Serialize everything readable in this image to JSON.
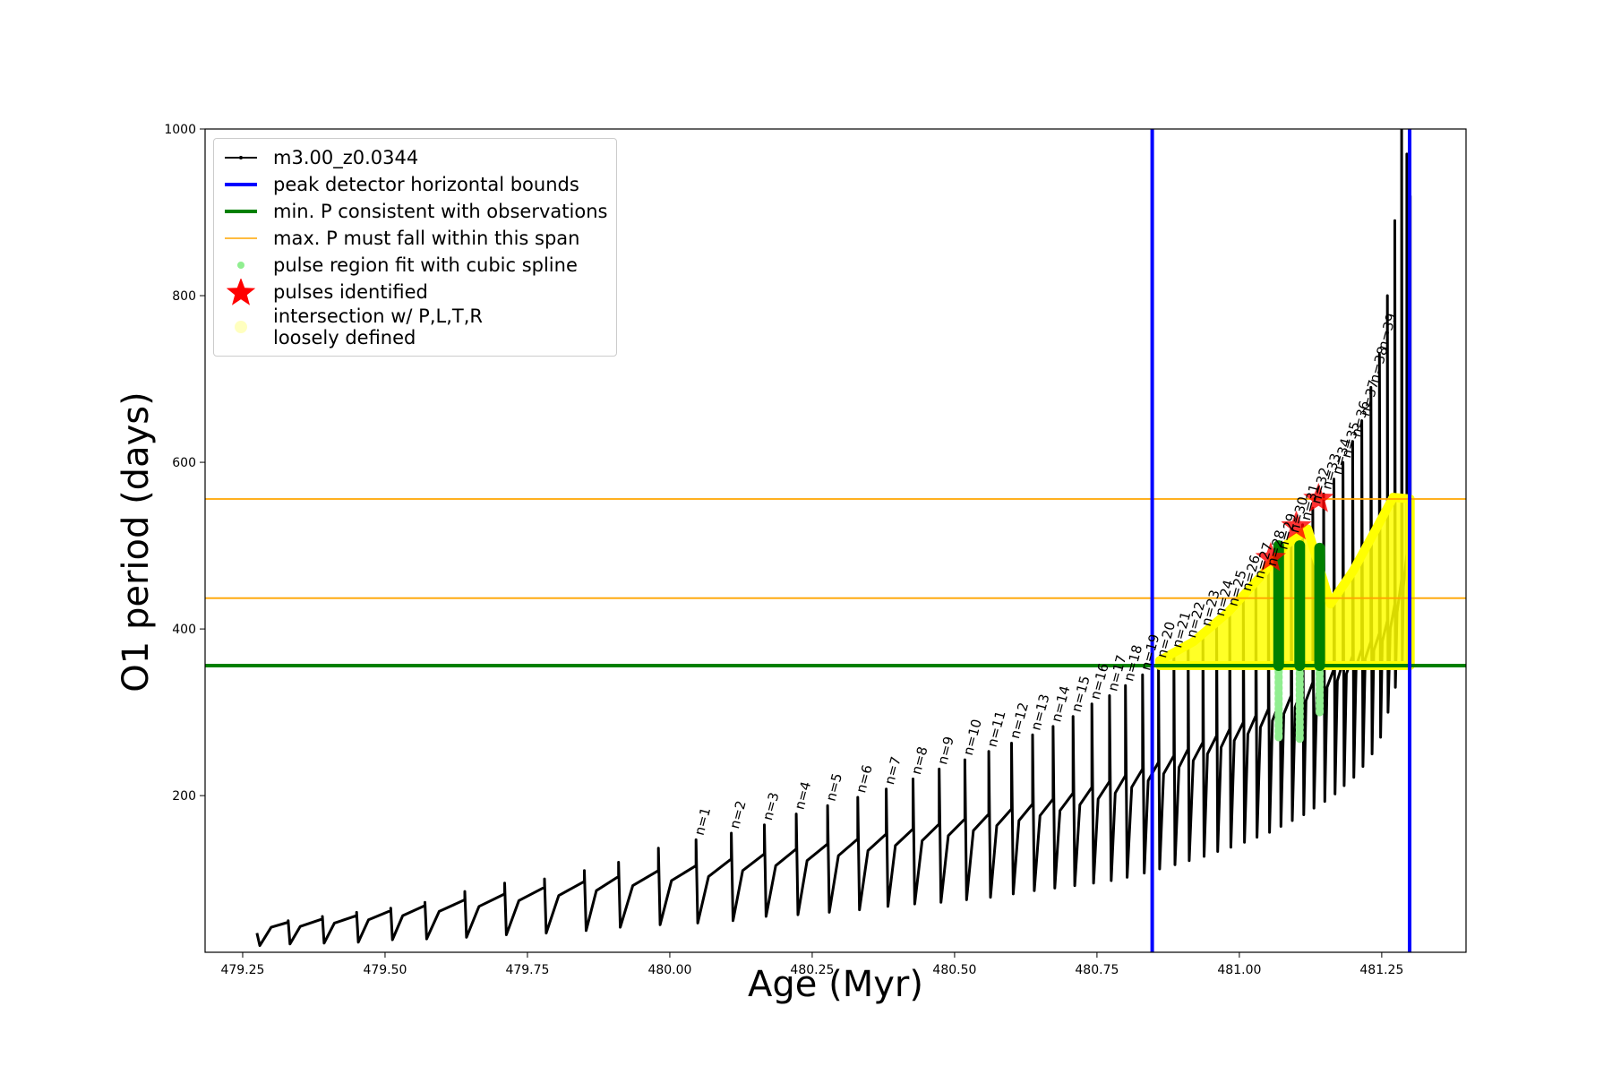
{
  "chart_data": {
    "type": "line",
    "x_label": "Age (Myr)",
    "y_label": "O1 period (days)",
    "xlim": [
      479.184,
      481.398
    ],
    "ylim": [
      12,
      1000
    ],
    "xticks": [
      479.25,
      {
        "value": 479.5,
        "label": "479.50"
      },
      479.75,
      {
        "value": 480.0,
        "label": "480.00"
      },
      480.25,
      {
        "value": 480.5,
        "label": "480.50"
      },
      480.75,
      {
        "value": 481.0,
        "label": "481.00"
      },
      481.25
    ],
    "yticks": [
      200,
      400,
      600,
      800,
      1000
    ],
    "series": [
      {
        "name": "m3.00_z0.0344",
        "type": "line",
        "color": "#000000",
        "x": [
          479.275,
          479.28,
          479.3,
          479.33,
          479.33,
          479.333,
          479.351,
          479.39,
          479.39,
          479.393,
          479.411,
          479.45,
          479.45,
          479.453,
          479.471,
          479.51,
          479.51,
          479.513,
          479.531,
          479.57,
          479.57,
          479.573,
          479.595,
          479.64,
          479.64,
          479.643,
          479.665,
          479.71,
          479.71,
          479.713,
          479.735,
          479.78,
          479.78,
          479.783,
          479.805,
          479.85,
          479.85,
          479.853,
          479.871,
          479.91,
          479.91,
          479.913,
          479.935,
          479.98,
          479.98,
          479.983,
          480.003,
          480.046,
          480.046,
          480.049,
          480.068,
          480.108,
          480.108,
          480.111,
          480.128,
          480.166,
          480.166,
          480.169,
          480.186,
          480.222,
          480.222,
          480.225,
          480.241,
          480.277,
          480.277,
          480.28,
          480.296,
          480.33,
          480.33,
          480.333,
          480.348,
          480.38,
          480.38,
          480.383,
          480.396,
          480.427,
          480.427,
          480.43,
          480.443,
          480.473,
          480.473,
          480.476,
          480.489,
          480.518,
          480.518,
          480.521,
          480.533,
          480.56,
          480.56,
          480.563,
          480.574,
          480.6,
          480.6,
          480.603,
          480.613,
          480.637,
          480.637,
          480.64,
          480.65,
          480.673,
          480.673,
          480.676,
          480.685,
          480.708,
          480.708,
          480.711,
          480.72,
          480.741,
          480.741,
          480.744,
          480.752,
          480.772,
          480.772,
          480.775,
          480.782,
          480.8,
          480.8,
          480.803,
          480.811,
          480.83,
          480.83,
          480.833,
          480.84,
          480.858,
          480.858,
          480.86,
          480.867,
          480.885,
          480.885,
          480.887,
          480.894,
          480.91,
          480.91,
          480.912,
          480.919,
          480.936,
          480.936,
          480.938,
          480.944,
          480.96,
          480.96,
          480.962,
          480.968,
          480.983,
          480.983,
          480.985,
          480.991,
          481.007,
          481.007,
          481.009,
          481.015,
          481.029,
          481.029,
          481.031,
          481.037,
          481.051,
          481.051,
          481.053,
          481.058,
          481.071,
          481.071,
          481.073,
          481.078,
          481.091,
          481.091,
          481.093,
          481.098,
          481.111,
          481.111,
          481.113,
          481.117,
          481.129,
          481.129,
          481.131,
          481.136,
          481.148,
          481.148,
          481.15,
          481.154,
          481.166,
          481.166,
          481.168,
          481.172,
          481.182,
          481.182,
          481.184,
          481.188,
          481.199,
          481.199,
          481.201,
          481.205,
          481.215,
          481.215,
          481.217,
          481.221,
          481.231,
          481.231,
          481.233,
          481.236,
          481.246,
          481.246,
          481.248,
          481.251,
          481.26,
          481.26,
          481.261,
          481.265,
          481.273,
          481.273,
          481.274,
          481.277,
          481.285,
          481.285,
          481.286,
          481.288,
          481.294,
          481.294,
          481.295,
          481.296,
          481.3,
          481.3
        ],
        "values": [
          35,
          20,
          42,
          48,
          50,
          22,
          43,
          52,
          55,
          23,
          47,
          56,
          60,
          24,
          51,
          62,
          65,
          27,
          56,
          68,
          72,
          28,
          61,
          75,
          85,
          30,
          67,
          82,
          95,
          33,
          74,
          90,
          100,
          35,
          80,
          97,
          110,
          38,
          86,
          103,
          120,
          42,
          92,
          110,
          137,
          45,
          98,
          116,
          147,
          47,
          103,
          124,
          155,
          50,
          110,
          130,
          165,
          55,
          116,
          136,
          178,
          57,
          122,
          142,
          188,
          60,
          128,
          148,
          198,
          63,
          134,
          154,
          208,
          67,
          140,
          160,
          220,
          70,
          146,
          166,
          232,
          72,
          152,
          172,
          243,
          75,
          158,
          178,
          253,
          78,
          164,
          184,
          263,
          82,
          170,
          190,
          273,
          86,
          176,
          196,
          283,
          89,
          182,
          203,
          295,
          92,
          189,
          210,
          310,
          95,
          196,
          217,
          320,
          98,
          203,
          224,
          332,
          102,
          210,
          232,
          345,
          107,
          218,
          240,
          360,
          112,
          226,
          248,
          372,
          117,
          234,
          256,
          384,
          122,
          242,
          264,
          398,
          127,
          250,
          272,
          410,
          133,
          258,
          280,
          422,
          138,
          266,
          288,
          440,
          144,
          274,
          296,
          455,
          150,
          282,
          304,
          470,
          156,
          290,
          312,
          490,
          163,
          298,
          320,
          510,
          170,
          306,
          328,
          525,
          177,
          314,
          336,
          545,
          185,
          322,
          344,
          562,
          193,
          330,
          352,
          580,
          202,
          338,
          360,
          600,
          212,
          346,
          368,
          625,
          222,
          355,
          376,
          650,
          235,
          364,
          385,
          690,
          250,
          374,
          395,
          730,
          270,
          385,
          410,
          800,
          300,
          400,
          430,
          890,
          330,
          420,
          460,
          1000,
          360,
          450,
          490,
          970,
          400,
          480,
          520,
          920
        ]
      },
      {
        "name": "peak detector horizontal bounds",
        "type": "vline",
        "color": "#0000ff",
        "x": [
          480.847,
          481.299
        ]
      },
      {
        "name": "min. P consistent with observations",
        "type": "hline",
        "color": "#008000",
        "values": [
          356
        ]
      },
      {
        "name": "max. P must fall within this span",
        "type": "hline",
        "color": "#ffa500",
        "values": [
          437,
          556
        ]
      },
      {
        "name": "pulse region fit with cubic spline",
        "type": "range",
        "color": "#90ee90",
        "x": [
          481.069,
          481.106,
          481.141
        ],
        "low": [
          270,
          268,
          300
        ],
        "values": [
          500,
          500,
          497
        ]
      },
      {
        "name": "pulses identified",
        "type": "star",
        "color": "#ff0000",
        "x": [
          481.055,
          481.1,
          481.139
        ],
        "values": [
          485,
          523,
          556
        ]
      },
      {
        "name": "intersection w/ P,L,T,R\nloosely defined",
        "type": "area",
        "color": "#ffff00",
        "x": [
          480.86,
          480.92,
          480.98,
          481.04,
          481.08,
          481.12,
          481.16,
          481.2,
          481.24,
          481.27,
          481.3,
          481.3
        ],
        "values": [
          362,
          385,
          420,
          465,
          500,
          520,
          430,
          470,
          520,
          558,
          556,
          470
        ]
      }
    ],
    "annotations": [
      "n=1",
      "n=2",
      "n=3",
      "n=4",
      "n=5",
      "n=6",
      "n=7",
      "n=8",
      "n=9",
      "n=10",
      "n=11",
      "n=12",
      "n=13",
      "n=14",
      "n=15",
      "n=16",
      "n=17",
      "n=18",
      "n=19",
      "n=20",
      "n=21",
      "n=22",
      "n=23",
      "n=24",
      "n=25",
      "n=26",
      "n=27",
      "n=28",
      "n=29",
      "n=30",
      "n=31",
      "n=32",
      "n=33",
      "n=34",
      "n=35",
      "n=36",
      "n=37",
      "n=38",
      "n=39"
    ]
  }
}
